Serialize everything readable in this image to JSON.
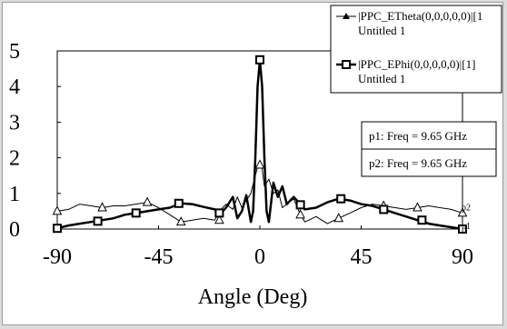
{
  "chart_data": {
    "type": "line",
    "title": "",
    "xlabel": "Angle (Deg)",
    "ylabel": "",
    "xlim": [
      -90,
      90
    ],
    "ylim": [
      0,
      5
    ],
    "xticks": [
      "-90",
      "-45",
      "0",
      "45",
      "90"
    ],
    "yticks": [
      "0",
      "1",
      "2",
      "3",
      "4",
      "5"
    ],
    "grid": false,
    "legend_position": "top-right",
    "series": [
      {
        "name": "|PPC_ETheta(0,0,0,0,0)|[1",
        "subtitle": "Untitled 1",
        "color": "#000000",
        "marker": "triangle",
        "line_width": 1,
        "end_label": "p2",
        "x": [
          -90,
          -85,
          -80,
          -75,
          -70,
          -65,
          -60,
          -55,
          -50,
          -45,
          -40,
          -35,
          -30,
          -25,
          -20,
          -18,
          -15,
          -12,
          -10,
          -8,
          -6,
          -4,
          -2,
          -1,
          0,
          1,
          2,
          4,
          6,
          8,
          10,
          12,
          15,
          18,
          20,
          25,
          30,
          35,
          40,
          45,
          50,
          55,
          60,
          65,
          70,
          75,
          80,
          85,
          90
        ],
        "y": [
          0.5,
          0.55,
          0.7,
          0.65,
          0.6,
          0.65,
          0.65,
          0.7,
          0.75,
          0.6,
          0.4,
          0.2,
          0.25,
          0.3,
          0.25,
          0.5,
          0.7,
          0.55,
          0.9,
          0.6,
          0.8,
          1.0,
          1.5,
          1.75,
          1.8,
          1.7,
          1.2,
          1.4,
          1.0,
          1.1,
          0.6,
          0.7,
          0.85,
          0.4,
          0.2,
          0.35,
          0.15,
          0.3,
          0.45,
          0.6,
          0.7,
          0.65,
          0.6,
          0.55,
          0.6,
          0.65,
          0.6,
          0.55,
          0.45
        ],
        "marker_x": [
          -90,
          -70,
          -50,
          -35,
          -18,
          0,
          18,
          35,
          55,
          70,
          90
        ],
        "marker_y": [
          0.5,
          0.6,
          0.75,
          0.2,
          0.25,
          1.8,
          0.4,
          0.3,
          0.65,
          0.6,
          0.45
        ]
      },
      {
        "name": "|PPC_EPhi(0,0,0,0,0)|[1]",
        "subtitle": "Untitled 1",
        "color": "#000000",
        "marker": "square",
        "line_width": 2.5,
        "end_label": "p1",
        "x": [
          -90,
          -85,
          -80,
          -75,
          -70,
          -65,
          -60,
          -55,
          -50,
          -45,
          -40,
          -35,
          -30,
          -25,
          -20,
          -18,
          -15,
          -12,
          -10,
          -8,
          -6,
          -4,
          -3,
          -2,
          -1,
          0,
          1,
          2,
          3,
          4,
          6,
          8,
          10,
          12,
          15,
          18,
          20,
          25,
          30,
          35,
          40,
          45,
          50,
          55,
          60,
          65,
          70,
          75,
          80,
          85,
          90
        ],
        "y": [
          0.02,
          0.1,
          0.15,
          0.2,
          0.25,
          0.3,
          0.4,
          0.45,
          0.5,
          0.55,
          0.6,
          0.72,
          0.7,
          0.62,
          0.55,
          0.4,
          0.6,
          0.9,
          0.3,
          0.5,
          0.95,
          0.2,
          0.5,
          2.0,
          4.0,
          4.75,
          4.0,
          2.0,
          0.5,
          0.2,
          1.3,
          0.9,
          1.2,
          0.7,
          0.9,
          0.7,
          0.55,
          0.6,
          0.75,
          0.85,
          0.8,
          0.7,
          0.65,
          0.55,
          0.45,
          0.35,
          0.25,
          0.15,
          0.1,
          0.05,
          0.0
        ],
        "marker_x": [
          -90,
          -72,
          -55,
          -36,
          -18,
          0,
          18,
          36,
          55,
          72,
          90
        ],
        "marker_y": [
          0.02,
          0.22,
          0.45,
          0.72,
          0.45,
          4.75,
          0.68,
          0.85,
          0.55,
          0.25,
          0.0
        ]
      }
    ],
    "markers": [
      {
        "text": "p1: Freq = 9.65 GHz"
      },
      {
        "text": "p2: Freq = 9.65 GHz"
      }
    ]
  }
}
